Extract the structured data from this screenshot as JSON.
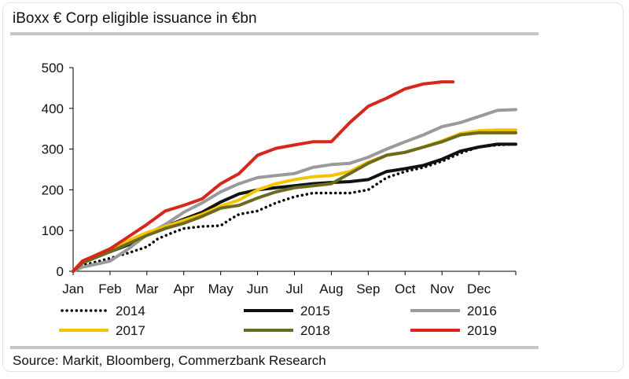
{
  "header": {
    "title": "iBoxx € Corp eligible issuance in €bn"
  },
  "footer": {
    "source": "Source: Markit, Bloomberg, Commerzbank Research"
  },
  "chart_data": {
    "type": "line",
    "title": "iBoxx € Corp eligible issuance in €bn",
    "xlabel": "",
    "ylabel": "",
    "x_ticks": [
      "Jan",
      "Feb",
      "Mar",
      "Apr",
      "May",
      "Jun",
      "Jul",
      "Aug",
      "Sep",
      "Oct",
      "Nov",
      "Dec"
    ],
    "x_range": [
      0,
      12
    ],
    "y_ticks": [
      0,
      100,
      200,
      300,
      400,
      500
    ],
    "ylim": [
      0,
      500
    ],
    "grid": false,
    "legend_position": "bottom",
    "series": [
      {
        "name": "2014",
        "color": "#000000",
        "style": "dotted",
        "x": [
          0,
          0.25,
          0.5,
          1,
          1.5,
          2,
          2.3,
          2.7,
          3,
          3.5,
          4,
          4.3,
          4.5,
          5,
          5.5,
          6,
          6.5,
          7,
          7.5,
          8,
          8.5,
          9,
          9.5,
          10,
          10.5,
          11,
          11.5,
          12
        ],
        "y": [
          0,
          15,
          20,
          32,
          45,
          60,
          80,
          95,
          105,
          110,
          112,
          130,
          140,
          148,
          168,
          183,
          192,
          192,
          192,
          200,
          230,
          245,
          255,
          270,
          290,
          305,
          310,
          312
        ]
      },
      {
        "name": "2015",
        "color": "#111111",
        "style": "solid",
        "x": [
          0,
          0.25,
          0.5,
          1,
          1.5,
          2,
          2.5,
          3,
          3.5,
          4,
          4.5,
          5,
          5.5,
          6,
          6.5,
          7,
          7.5,
          8,
          8.5,
          9,
          9.5,
          10,
          10.5,
          11,
          11.5,
          12
        ],
        "y": [
          0,
          20,
          30,
          48,
          65,
          90,
          110,
          128,
          145,
          170,
          190,
          200,
          205,
          210,
          215,
          218,
          220,
          225,
          245,
          252,
          260,
          275,
          295,
          305,
          312,
          312
        ]
      },
      {
        "name": "2016",
        "color": "#9a9a9a",
        "style": "solid",
        "x": [
          0,
          0.25,
          0.5,
          1,
          1.5,
          2,
          2.5,
          3,
          3.5,
          4,
          4.5,
          5,
          5.5,
          6,
          6.5,
          7,
          7.5,
          8,
          8.5,
          9,
          9.5,
          10,
          10.5,
          11,
          11.5,
          12
        ],
        "y": [
          0,
          10,
          15,
          25,
          55,
          90,
          115,
          145,
          168,
          195,
          215,
          230,
          235,
          240,
          255,
          262,
          265,
          280,
          300,
          318,
          335,
          355,
          365,
          380,
          395,
          397
        ]
      },
      {
        "name": "2017",
        "color": "#f5c400",
        "style": "solid",
        "x": [
          0,
          0.25,
          0.5,
          1,
          1.5,
          2,
          2.5,
          3,
          3.5,
          4,
          4.5,
          5,
          5.5,
          6,
          6.5,
          7,
          7.5,
          8,
          8.5,
          9,
          9.5,
          10,
          10.5,
          11,
          11.5,
          12
        ],
        "y": [
          0,
          25,
          35,
          55,
          75,
          95,
          110,
          125,
          140,
          160,
          175,
          200,
          215,
          225,
          232,
          235,
          245,
          268,
          285,
          292,
          305,
          320,
          338,
          345,
          347,
          347
        ]
      },
      {
        "name": "2018",
        "color": "#6b6b1e",
        "style": "solid",
        "x": [
          0,
          0.25,
          0.5,
          1,
          1.5,
          2,
          2.5,
          3,
          3.5,
          4,
          4.5,
          5,
          5.5,
          6,
          6.5,
          7,
          7.5,
          8,
          8.5,
          9,
          9.5,
          10,
          10.5,
          11,
          11.5,
          12
        ],
        "y": [
          0,
          20,
          30,
          48,
          68,
          88,
          105,
          118,
          135,
          155,
          162,
          180,
          195,
          205,
          210,
          215,
          240,
          265,
          285,
          292,
          305,
          318,
          335,
          340,
          340,
          340
        ]
      },
      {
        "name": "2019",
        "color": "#d7261b",
        "style": "solid",
        "x": [
          0,
          0.25,
          0.5,
          1,
          1.5,
          2,
          2.5,
          3,
          3.5,
          4,
          4.5,
          5,
          5.5,
          6,
          6.5,
          7,
          7.5,
          8,
          8.5,
          9,
          9.5,
          10,
          10.3
        ],
        "y": [
          0,
          25,
          35,
          55,
          85,
          115,
          148,
          162,
          178,
          215,
          240,
          285,
          302,
          310,
          318,
          318,
          365,
          405,
          425,
          448,
          460,
          465,
          465
        ]
      }
    ]
  }
}
